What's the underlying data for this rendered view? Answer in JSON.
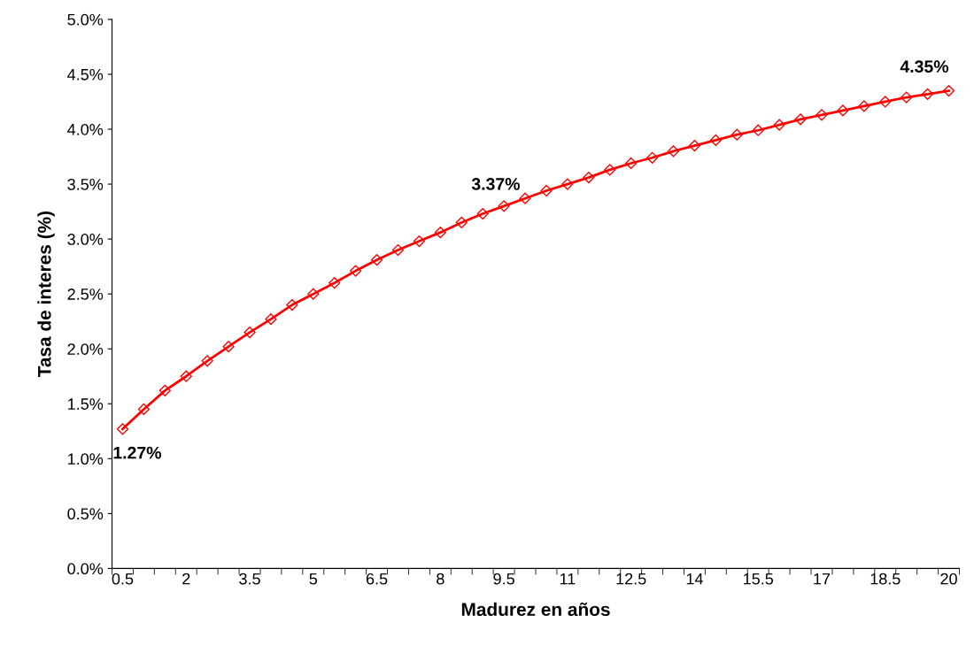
{
  "chart_data": {
    "type": "line",
    "xlabel": "Madurez en años",
    "ylabel": "Tasa de interes (%)",
    "categories": [
      "0.5",
      null,
      null,
      "2",
      null,
      null,
      "3.5",
      null,
      null,
      "5",
      null,
      null,
      "6.5",
      null,
      null,
      "8",
      null,
      null,
      "9.5",
      null,
      null,
      "11",
      null,
      null,
      "12.5",
      null,
      null,
      "14",
      null,
      null,
      "15.5",
      null,
      null,
      "17",
      null,
      null,
      "18.5",
      null,
      null,
      "20"
    ],
    "series": [
      {
        "color": "#ff0000",
        "values": [
          1.27,
          1.45,
          1.62,
          1.75,
          1.89,
          2.02,
          2.15,
          2.27,
          2.4,
          2.5,
          2.6,
          2.71,
          2.81,
          2.9,
          2.98,
          3.06,
          3.15,
          3.23,
          3.3,
          3.37,
          3.44,
          3.5,
          3.56,
          3.63,
          3.69,
          3.74,
          3.8,
          3.85,
          3.9,
          3.95,
          3.99,
          4.04,
          4.09,
          4.13,
          4.17,
          4.21,
          4.25,
          4.29,
          4.32,
          4.35
        ],
        "value_labels": [
          "1.27%",
          null,
          null,
          null,
          null,
          null,
          null,
          null,
          null,
          null,
          null,
          null,
          null,
          null,
          null,
          null,
          null,
          null,
          null,
          "3.37%",
          null,
          null,
          null,
          null,
          null,
          null,
          null,
          null,
          null,
          null,
          null,
          null,
          null,
          null,
          null,
          null,
          null,
          null,
          null,
          "4.35%"
        ]
      }
    ],
    "ylim": [
      0,
      5
    ],
    "yticks": [
      {
        "value": 0,
        "label": "0.0%"
      },
      {
        "value": 0.5,
        "label": "0.5%"
      },
      {
        "value": 1,
        "label": "1.0%"
      },
      {
        "value": 1.5,
        "label": "1.5%"
      },
      {
        "value": 2,
        "label": "2.0%"
      },
      {
        "value": 2.5,
        "label": "2.5%"
      },
      {
        "value": 3,
        "label": "3.0%"
      },
      {
        "value": 3.5,
        "label": "3.5%"
      },
      {
        "value": 4,
        "label": "4.0%"
      },
      {
        "value": 4.5,
        "label": "4.5%"
      },
      {
        "value": 5,
        "label": "5.0%"
      }
    ],
    "marker": "diamond",
    "line_style": "solid",
    "grid": false,
    "legend": false
  }
}
